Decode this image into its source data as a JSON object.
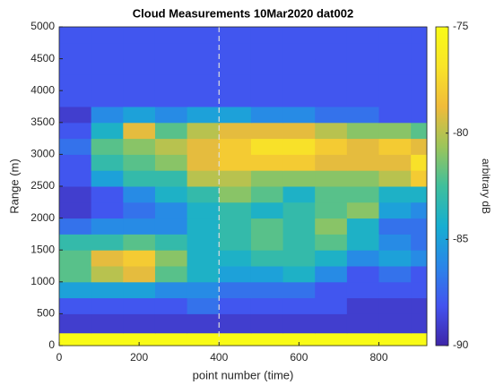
{
  "chart_data": {
    "type": "heatmap",
    "title": "Cloud Measurements 10Mar2020 dat002",
    "x_label": "point number (time)",
    "y_label": "Range (m)",
    "colorbar_label": "arbitrary dB",
    "xbins": [
      0,
      80,
      160,
      240,
      320,
      400,
      480,
      560,
      640,
      720,
      800,
      880,
      920
    ],
    "ybins": [
      0,
      200,
      500,
      750,
      1000,
      1250,
      1500,
      1750,
      2000,
      2250,
      2500,
      2750,
      3000,
      3250,
      3500,
      3750,
      4000,
      4250,
      4500,
      4750,
      5000
    ],
    "z": [
      [
        -75,
        -75,
        -75,
        -75,
        -75,
        -75,
        -75,
        -75,
        -75,
        -75,
        -75,
        -75
      ],
      [
        -89,
        -89,
        -89,
        -89,
        -89,
        -89,
        -89,
        -89,
        -89,
        -89,
        -89,
        -89
      ],
      [
        -88,
        -88,
        -88,
        -88,
        -87,
        -88,
        -88,
        -88,
        -88,
        -89,
        -89,
        -89
      ],
      [
        -85,
        -85,
        -85,
        -86,
        -86,
        -87,
        -87,
        -87,
        -88,
        -88,
        -88,
        -88
      ],
      [
        -82,
        -80,
        -79,
        -82,
        -84,
        -85,
        -85,
        -84,
        -86,
        -88,
        -87,
        -88
      ],
      [
        -82,
        -79,
        -78,
        -81,
        -84,
        -84,
        -83,
        -83,
        -84,
        -86,
        -85,
        -86
      ],
      [
        -83,
        -83,
        -82,
        -83,
        -84,
        -83,
        -82,
        -83,
        -82,
        -84,
        -86,
        -87
      ],
      [
        -87,
        -86,
        -86,
        -86,
        -84,
        -83,
        -82,
        -83,
        -81,
        -84,
        -87,
        -87
      ],
      [
        -89,
        -88,
        -87,
        -86,
        -84,
        -83,
        -84,
        -83,
        -82,
        -81,
        -85,
        -86
      ],
      [
        -89,
        -88,
        -86,
        -84,
        -83,
        -81,
        -82,
        -84,
        -82,
        -82,
        -84,
        -84
      ],
      [
        -88,
        -85,
        -83,
        -83,
        -80,
        -80,
        -81,
        -81,
        -81,
        -81,
        -80,
        -78
      ],
      [
        -88,
        -83,
        -82,
        -81,
        -79,
        -78,
        -78,
        -78,
        -79,
        -79,
        -79,
        -77
      ],
      [
        -87,
        -82,
        -81,
        -80,
        -79,
        -78,
        -77,
        -77,
        -78,
        -79,
        -78,
        -79
      ],
      [
        -88,
        -84,
        -79,
        -82,
        -80,
        -79,
        -79,
        -79,
        -80,
        -81,
        -81,
        -82
      ],
      [
        -89,
        -86,
        -85,
        -86,
        -85,
        -85,
        -86,
        -86,
        -87,
        -87,
        -88,
        -88
      ],
      [
        -88,
        -88,
        -88,
        -88,
        -88,
        -88,
        -88,
        -88,
        -88,
        -88,
        -88,
        -88
      ],
      [
        -88,
        -88,
        -88,
        -88,
        -88,
        -88,
        -88,
        -88,
        -88,
        -88,
        -88,
        -88
      ],
      [
        -88,
        -88,
        -88,
        -88,
        -88,
        -88,
        -88,
        -88,
        -88,
        -88,
        -88,
        -88
      ],
      [
        -88,
        -88,
        -88,
        -88,
        -88,
        -88,
        -88,
        -88,
        -88,
        -88,
        -88,
        -88
      ],
      [
        -88,
        -88,
        -88,
        -88,
        -88,
        -88,
        -88,
        -88,
        -88,
        -88,
        -88,
        -88
      ]
    ],
    "xlim": [
      0,
      920
    ],
    "ylim": [
      0,
      5000
    ],
    "clim": [
      -90,
      -75
    ],
    "xticks": [
      0,
      200,
      400,
      600,
      800
    ],
    "yticks": [
      0,
      500,
      1000,
      1500,
      2000,
      2500,
      3000,
      3500,
      4000,
      4500,
      5000
    ],
    "cticks": [
      -90,
      -85,
      -80,
      -75
    ],
    "vline": 400,
    "colormap": [
      "#3e26a8",
      "#4353ef",
      "#2a86e8",
      "#16aed1",
      "#3fbf9c",
      "#9cc55a",
      "#f0bb3a",
      "#f9e428",
      "#f9fb15"
    ]
  }
}
